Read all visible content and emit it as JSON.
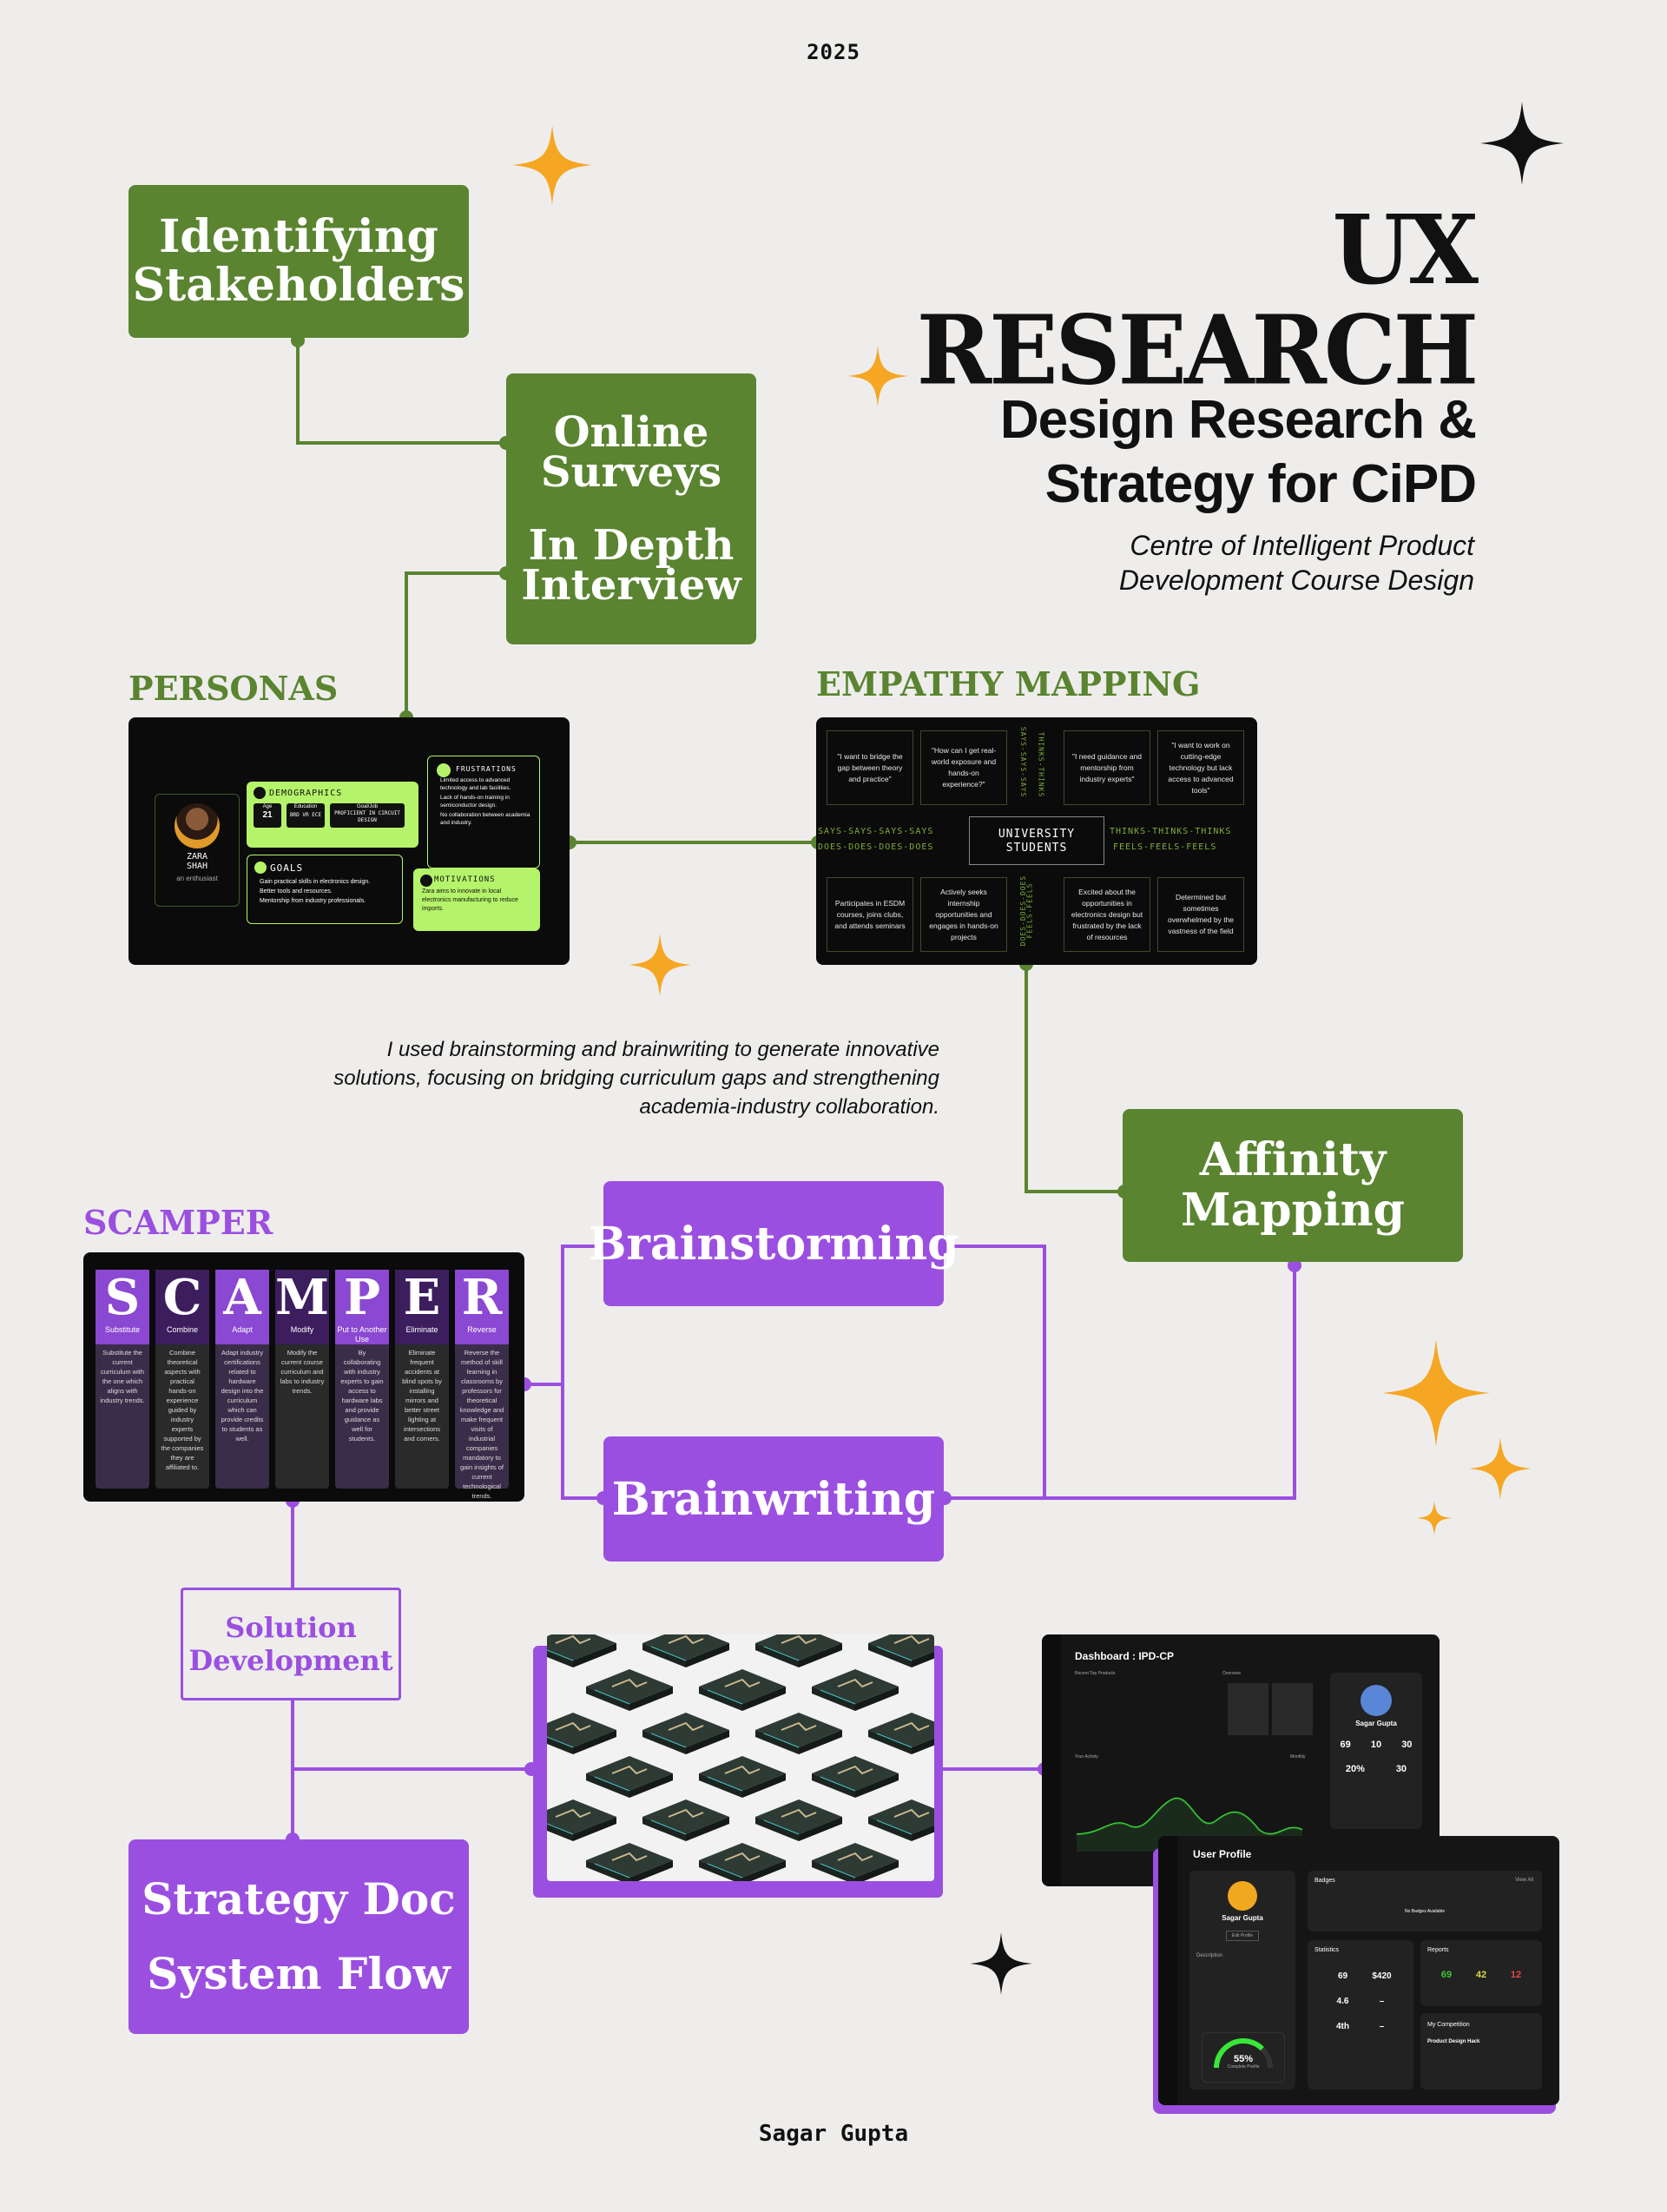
{
  "header": {
    "year": "2025",
    "title": "UX RESEARCH",
    "subtitle_line1": "Design Research &",
    "subtitle_line2": "Strategy for CiPD",
    "subtitle_desc_line1": "Centre of Intelligent Product",
    "subtitle_desc_line2": "Development Course Design"
  },
  "nodes": {
    "stakeholders_line1": "Identifying",
    "stakeholders_line2": "Stakeholders",
    "surveys_line1": "Online",
    "surveys_line2": "Surveys",
    "interview_line1": "In Depth",
    "interview_line2": "Interview",
    "affinity_line1": "Affinity",
    "affinity_line2": "Mapping",
    "brainstorming": "Brainstorming",
    "brainwriting": "Brainwriting",
    "solution_line1": "Solution",
    "solution_line2": "Development",
    "strategy_line1": "Strategy Doc",
    "strategy_line2": "System Flow"
  },
  "sections": {
    "personas": "PERSONAS",
    "empathy": "EMPATHY MAPPING",
    "scamper": "SCAMPER"
  },
  "note": {
    "line1": "I used brainstorming and brainwriting to generate innovative",
    "line2": "solutions, focusing on bridging curriculum gaps and strengthening",
    "line3": "academia-industry collaboration."
  },
  "persona": {
    "name_line1": "ZARA",
    "name_line2": "SHAH",
    "tagline": "an enthusiast",
    "demographics_title": "DEMOGRAPHICS",
    "demo": [
      {
        "label": "Age",
        "value": "21"
      },
      {
        "label": "Education",
        "value": "BRD VR ECE"
      },
      {
        "label": "Goal/Job",
        "value": "PROFICIENT IN CIRCUIT DESIGN"
      }
    ],
    "goals_title": "GOALS",
    "goals": [
      "Gain practical skills in electronics design.",
      "Better tools and resources.",
      "Mentorship from industry professionals."
    ],
    "frustrations_title": "FRUSTRATIONS",
    "frustrations": [
      "Limited access to advanced technology and lab facilities.",
      "Lack of hands-on training in semiconductor design.",
      "No collaboration between academia and industry."
    ],
    "motivations_title": "MOTIVATIONS",
    "motivations": "Zara aims to innovate in local electronics manufacturing to reduce imports."
  },
  "empathy": {
    "center_line1": "UNIVERSITY",
    "center_line2": "STUDENTS",
    "says_tag": "SAYS-SAYS-SAYS-SAYS",
    "does_tag": "DOES-DOES-DOES-DOES",
    "thinks_tag": "THINKS-THINKS-THINKS",
    "feels_tag": "FEELS-FEELS-FEELS",
    "says_vert": "SAYS-SAYS-SAYS",
    "thinks_vert": "THINKS-THINKS",
    "does_vert": "DOES-DOES-DOES",
    "feels_vert": "FEELS-FEELS",
    "cells": [
      "\"I want to bridge the gap between theory and practice\"",
      "\"How can I get real-world exposure and hands-on experience?\"",
      "\"I need guidance and mentorship from industry experts\"",
      "\"I want to work on cutting-edge technology but lack access to advanced tools\"",
      "Participates in ESDM courses, joins clubs, and attends seminars",
      "Actively seeks internship opportunities and engages in hands-on projects",
      "Excited about the opportunities in electronics design but frustrated by the lack of resources",
      "Determined but sometimes overwhelmed by the vastness of the field"
    ]
  },
  "scamper": [
    {
      "letter": "S",
      "name": "Substitute",
      "desc": "Substitute the current curriculum with the one which aligns with industry trends."
    },
    {
      "letter": "C",
      "name": "Combine",
      "desc": "Combine theoretical aspects with practical hands-on experience guided by industry experts supported by the companies they are affiliated to."
    },
    {
      "letter": "A",
      "name": "Adapt",
      "desc": "Adapt industry certifications related to hardware design into the curriculum which can provide credits to students as well."
    },
    {
      "letter": "M",
      "name": "Modify",
      "desc": "Modify the current course curriculum and labs to industry trends."
    },
    {
      "letter": "P",
      "name": "Put to Another Use",
      "desc": "By collaborating with industry experts to gain access to hardware labs and provide guidance as well for students."
    },
    {
      "letter": "E",
      "name": "Eliminate",
      "desc": "Eliminate frequent accidents at blind spots by installing mirrors and better street lighting at intersections and corners."
    },
    {
      "letter": "R",
      "name": "Reverse",
      "desc": "Reverse the method of skill learning in classrooms by professors for theoretical knowledge and make frequent visits of industrial companies mandatory to gain insights of current technological trends."
    }
  ],
  "dashboard": {
    "title": "Dashboard : IPD-CP",
    "recent": "Recent Top Products",
    "overview": "Overview",
    "activity": "Your Activity",
    "period": "Monthly",
    "user": "Sagar Gupta",
    "stats": [
      "69",
      "10",
      "30",
      "20%",
      "30"
    ]
  },
  "profile": {
    "title": "User Profile",
    "name": "Sagar Gupta",
    "edit": "Edit Profile",
    "badges": "Badges",
    "view_all": "View All",
    "no_badges": "No Badges Available",
    "description": "Description",
    "statistics": "Statistics",
    "reports": "Reports",
    "competition": "My Competition",
    "hack": "Product Design Hack",
    "percent": "55%",
    "complete": "Complete Profile",
    "stat_values": [
      "69",
      "$420",
      "4.6",
      "–",
      "4th",
      "–"
    ],
    "report_values": [
      "69",
      "42",
      "12"
    ]
  },
  "footer": {
    "author": "Sagar Gupta"
  },
  "colors": {
    "green": "#5a8430",
    "purple": "#9b4fe0",
    "star": "#f5a623",
    "dark": "#0b0b0b",
    "lime": "#b5f36a"
  }
}
